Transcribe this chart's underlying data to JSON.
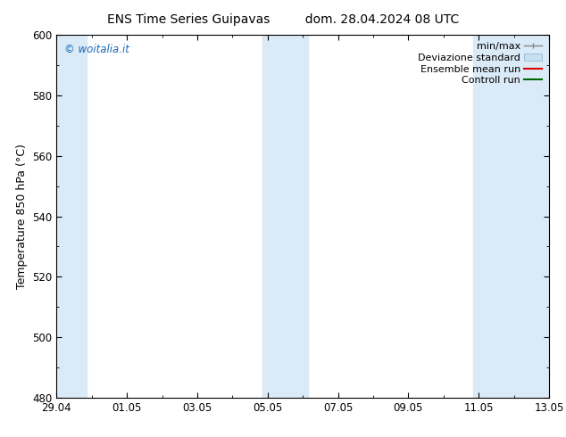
{
  "title_left": "ENS Time Series Guipavas",
  "title_right": "dom. 28.04.2024 08 UTC",
  "ylabel": "Temperature 850 hPa (°C)",
  "ylim": [
    480,
    600
  ],
  "yticks": [
    480,
    500,
    520,
    540,
    560,
    580,
    600
  ],
  "xtick_labels": [
    "29.04",
    "01.05",
    "03.05",
    "05.05",
    "07.05",
    "09.05",
    "11.05",
    "13.05"
  ],
  "xtick_positions": [
    0,
    2,
    4,
    6,
    8,
    10,
    12,
    14
  ],
  "x_max": 14,
  "shaded_bands": [
    {
      "x_start": 0,
      "x_end": 0.85
    },
    {
      "x_start": 5.85,
      "x_end": 7.15
    },
    {
      "x_start": 11.85,
      "x_end": 14.0
    }
  ],
  "band_color": "#daeaf7",
  "plot_bg_color": "#ffffff",
  "fig_bg_color": "#ffffff",
  "watermark_text": "© woitalia.it",
  "watermark_color": "#1a6ab5",
  "legend_labels": [
    "min/max",
    "Deviazione standard",
    "Ensemble mean run",
    "Controll run"
  ],
  "legend_colors": [
    "#888888",
    "#c8dff0",
    "#dd0000",
    "#006600"
  ],
  "font_size_title": 10,
  "font_size_axis_label": 9,
  "font_size_tick": 8.5,
  "font_size_legend": 8,
  "font_size_watermark": 8.5
}
